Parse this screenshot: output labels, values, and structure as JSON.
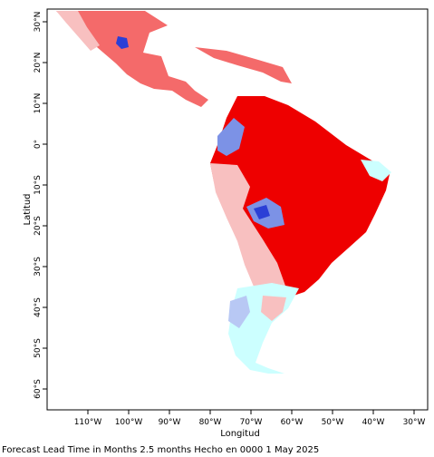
{
  "map": {
    "x_axis_title": "Longitud",
    "y_axis_title": "Latitud",
    "lon_tick_labels": [
      "110°W",
      "100°W",
      "90°W",
      "80°W",
      "70°W",
      "60°W",
      "50°W",
      "40°W",
      "30°W"
    ],
    "lat_tick_labels": [
      "30°N",
      "20°N",
      "10°N",
      "0°",
      "10°S",
      "20°S",
      "30°S",
      "40°S",
      "50°S",
      "60°S"
    ],
    "lon_range": [
      -120,
      -28
    ],
    "lat_range": [
      -65,
      33
    ],
    "colors": {
      "strong_positive": "#ee0000",
      "moderate_positive": "#f46a6a",
      "weak_positive": "#f8c0c0",
      "neutral": "#ccffff",
      "weak_negative": "#b8c8f4",
      "moderate_negative": "#7c92e6",
      "strong_negative": "#2b3fd6"
    }
  },
  "caption": "Forecast Lead Time in Months 2.5 months Hecho en 0000 1 May 2025"
}
